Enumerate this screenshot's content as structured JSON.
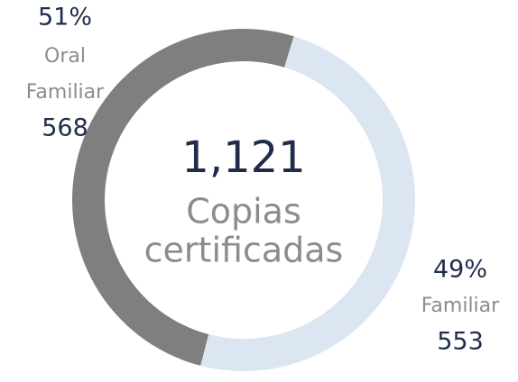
{
  "chart_data": {
    "type": "pie",
    "donut": true,
    "categories": [
      "Oral Familiar",
      "Familiar"
    ],
    "values": [
      568,
      553
    ],
    "percent_labels": [
      "51%",
      "49%"
    ],
    "colors": [
      "#7f7f7f",
      "#dce6f2"
    ],
    "total_label": "1,121",
    "center_text": [
      "Copias",
      "certificadas"
    ]
  }
}
